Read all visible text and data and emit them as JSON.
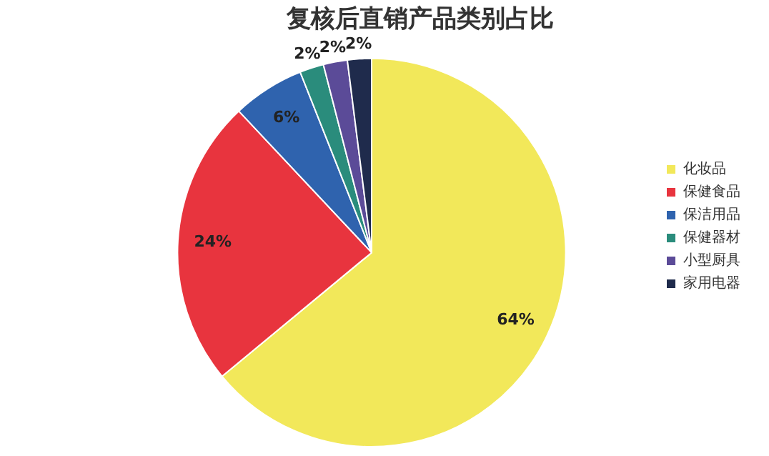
{
  "chart_data": {
    "type": "pie",
    "title": "复核后直销产品类别占比",
    "categories": [
      "化妆品",
      "保健食品",
      "保洁用品",
      "保健器材",
      "小型厨具",
      "家用电器"
    ],
    "values": [
      64,
      24,
      6,
      2,
      2,
      2
    ],
    "value_labels": [
      "64%",
      "24%",
      "6%",
      "2%",
      "2%",
      "2%"
    ],
    "colors": [
      "#f2e85a",
      "#e8343e",
      "#2f63ae",
      "#2a8c7c",
      "#5b4b98",
      "#1f2b4c"
    ],
    "legend": "right"
  }
}
